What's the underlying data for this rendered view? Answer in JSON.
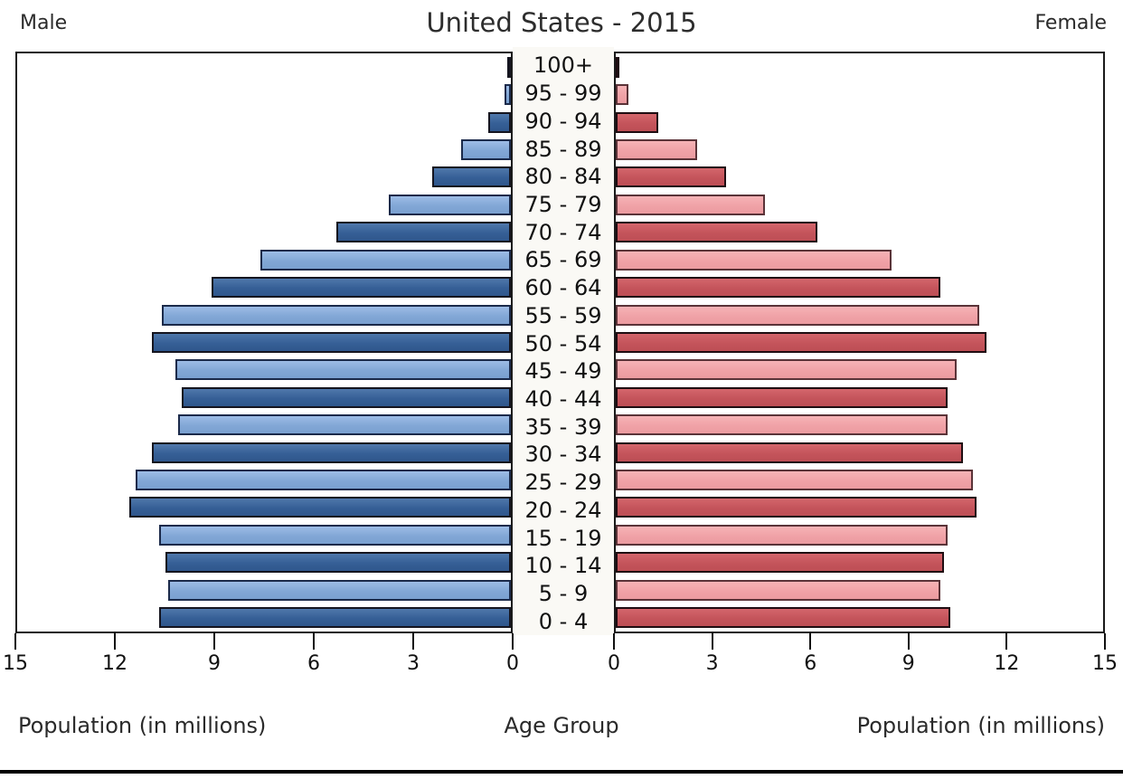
{
  "header": {
    "title": "United States - 2015",
    "male_label": "Male",
    "female_label": "Female"
  },
  "footer": {
    "xlabel_left": "Population (in millions)",
    "center_label": "Age Group",
    "xlabel_right": "Population (in millions)"
  },
  "chart_data": {
    "type": "bar",
    "subtype": "population-pyramid",
    "title": "United States - 2015",
    "xlabel": "Population (in millions)",
    "center_axis_label": "Age Group",
    "units": "millions",
    "xlim": [
      0,
      15
    ],
    "x_ticks_left": [
      15,
      12,
      9,
      6,
      3,
      0
    ],
    "x_ticks_right": [
      0,
      3,
      6,
      9,
      12,
      15
    ],
    "grid": false,
    "legend_position": "top-corners",
    "categories_top_to_bottom": [
      "100+",
      "95 - 99",
      "90 - 94",
      "85 - 89",
      "80 - 84",
      "75 - 79",
      "70 - 74",
      "65 - 69",
      "60 - 64",
      "55 - 59",
      "50 - 54",
      "45 - 49",
      "40 - 44",
      "35 - 39",
      "30 - 34",
      "25 - 29",
      "20 - 24",
      "15 - 19",
      "10 - 14",
      "5 - 9",
      "0 - 4"
    ],
    "series": [
      {
        "name": "Male",
        "side": "left",
        "values": [
          0.05,
          0.2,
          0.7,
          1.5,
          2.4,
          3.7,
          5.3,
          7.6,
          9.1,
          10.6,
          10.9,
          10.2,
          10.0,
          10.1,
          10.9,
          11.4,
          11.6,
          10.7,
          10.5,
          10.4,
          10.7
        ]
      },
      {
        "name": "Female",
        "side": "right",
        "values": [
          0.1,
          0.4,
          1.3,
          2.5,
          3.4,
          4.6,
          6.2,
          8.5,
          10.0,
          11.2,
          11.4,
          10.5,
          10.2,
          10.2,
          10.7,
          11.0,
          11.1,
          10.2,
          10.1,
          10.0,
          10.3
        ]
      }
    ],
    "colors": {
      "male_dark": "#3a649a",
      "male_light": "#85aad9",
      "female_dark": "#c5545b",
      "female_light": "#f2a6aa",
      "row_shading": "alternating dark/light starting dark at 100+"
    }
  }
}
